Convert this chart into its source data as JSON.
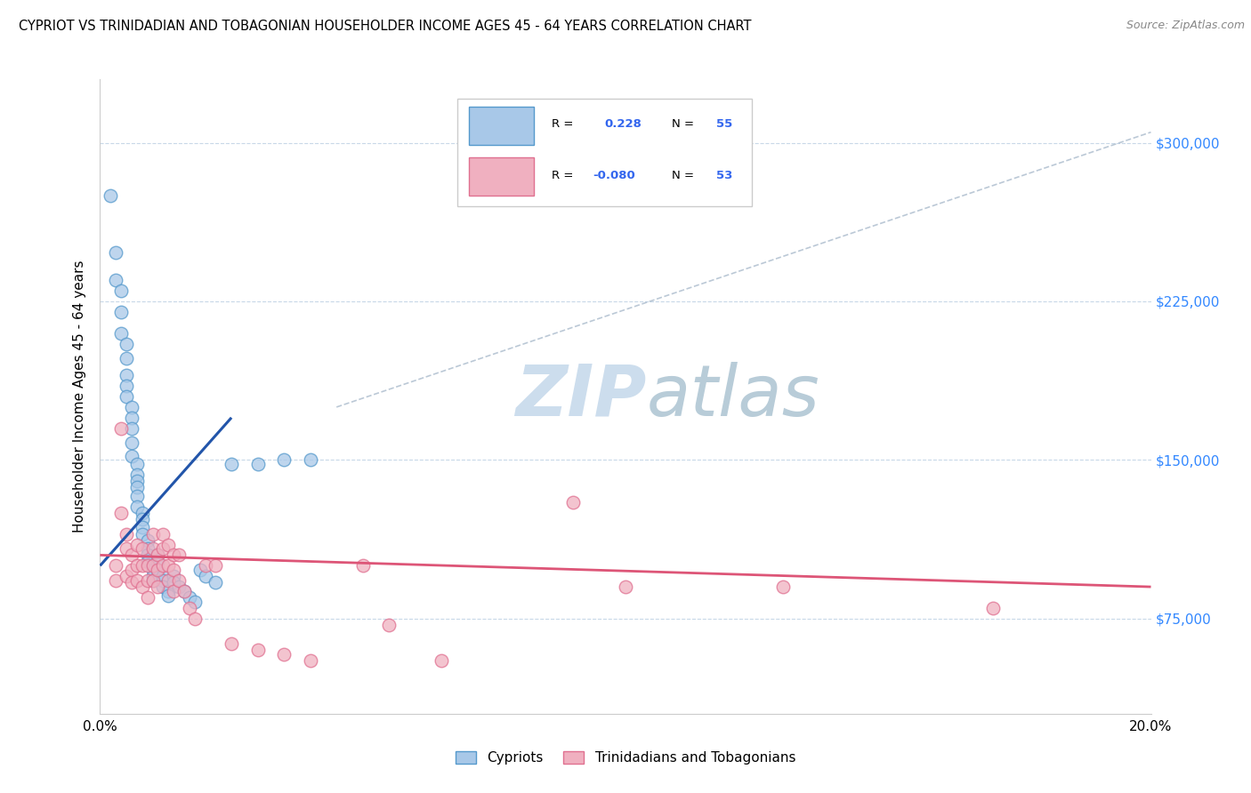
{
  "title": "CYPRIOT VS TRINIDADIAN AND TOBAGONIAN HOUSEHOLDER INCOME AGES 45 - 64 YEARS CORRELATION CHART",
  "source": "Source: ZipAtlas.com",
  "ylabel": "Householder Income Ages 45 - 64 years",
  "ytick_labels": [
    "$75,000",
    "$150,000",
    "$225,000",
    "$300,000"
  ],
  "ytick_values": [
    75000,
    150000,
    225000,
    300000
  ],
  "xlim": [
    0.0,
    0.2
  ],
  "ylim": [
    30000,
    330000
  ],
  "legend_label1": "Cypriots",
  "legend_label2": "Trinidadians and Tobagonians",
  "r1": "0.228",
  "n1": "55",
  "r2": "-0.080",
  "n2": "53",
  "color_blue": "#a8c8e8",
  "color_blue_edge": "#5599cc",
  "color_blue_line": "#2255aa",
  "color_pink": "#f0b0c0",
  "color_pink_edge": "#e07090",
  "color_pink_line": "#dd5577",
  "color_dashed": "#aabbcc",
  "watermark_color": "#ccdded",
  "blue_scatter_x": [
    0.002,
    0.003,
    0.003,
    0.004,
    0.004,
    0.004,
    0.005,
    0.005,
    0.005,
    0.005,
    0.005,
    0.006,
    0.006,
    0.006,
    0.006,
    0.006,
    0.007,
    0.007,
    0.007,
    0.007,
    0.007,
    0.007,
    0.008,
    0.008,
    0.008,
    0.008,
    0.009,
    0.009,
    0.009,
    0.009,
    0.01,
    0.01,
    0.01,
    0.01,
    0.011,
    0.011,
    0.011,
    0.012,
    0.012,
    0.012,
    0.013,
    0.013,
    0.014,
    0.014,
    0.015,
    0.016,
    0.017,
    0.018,
    0.019,
    0.02,
    0.022,
    0.025,
    0.03,
    0.035,
    0.04
  ],
  "blue_scatter_y": [
    275000,
    248000,
    235000,
    230000,
    220000,
    210000,
    205000,
    198000,
    190000,
    185000,
    180000,
    175000,
    170000,
    165000,
    158000,
    152000,
    148000,
    143000,
    140000,
    137000,
    133000,
    128000,
    125000,
    122000,
    118000,
    115000,
    112000,
    108000,
    105000,
    102000,
    100000,
    98000,
    95000,
    93000,
    105000,
    102000,
    98000,
    95000,
    93000,
    90000,
    88000,
    86000,
    95000,
    92000,
    90000,
    88000,
    85000,
    83000,
    98000,
    95000,
    92000,
    148000,
    148000,
    150000,
    150000
  ],
  "pink_scatter_x": [
    0.003,
    0.003,
    0.004,
    0.004,
    0.005,
    0.005,
    0.005,
    0.006,
    0.006,
    0.006,
    0.007,
    0.007,
    0.007,
    0.008,
    0.008,
    0.008,
    0.009,
    0.009,
    0.009,
    0.01,
    0.01,
    0.01,
    0.01,
    0.011,
    0.011,
    0.011,
    0.012,
    0.012,
    0.012,
    0.013,
    0.013,
    0.013,
    0.014,
    0.014,
    0.014,
    0.015,
    0.015,
    0.016,
    0.017,
    0.018,
    0.02,
    0.022,
    0.025,
    0.03,
    0.035,
    0.04,
    0.05,
    0.055,
    0.065,
    0.09,
    0.1,
    0.13,
    0.17
  ],
  "pink_scatter_y": [
    100000,
    93000,
    165000,
    125000,
    115000,
    108000,
    95000,
    105000,
    98000,
    92000,
    110000,
    100000,
    93000,
    108000,
    100000,
    90000,
    100000,
    93000,
    85000,
    115000,
    108000,
    100000,
    93000,
    105000,
    98000,
    90000,
    115000,
    108000,
    100000,
    110000,
    100000,
    93000,
    105000,
    98000,
    88000,
    105000,
    93000,
    88000,
    80000,
    75000,
    100000,
    100000,
    63000,
    60000,
    58000,
    55000,
    100000,
    72000,
    55000,
    130000,
    90000,
    90000,
    80000
  ],
  "blue_line_x": [
    0.0,
    0.025
  ],
  "blue_line_y": [
    100000,
    170000
  ],
  "pink_line_x": [
    0.0,
    0.2
  ],
  "pink_line_y": [
    105000,
    90000
  ],
  "diag_line_x": [
    0.045,
    0.2
  ],
  "diag_line_y": [
    175000,
    305000
  ]
}
